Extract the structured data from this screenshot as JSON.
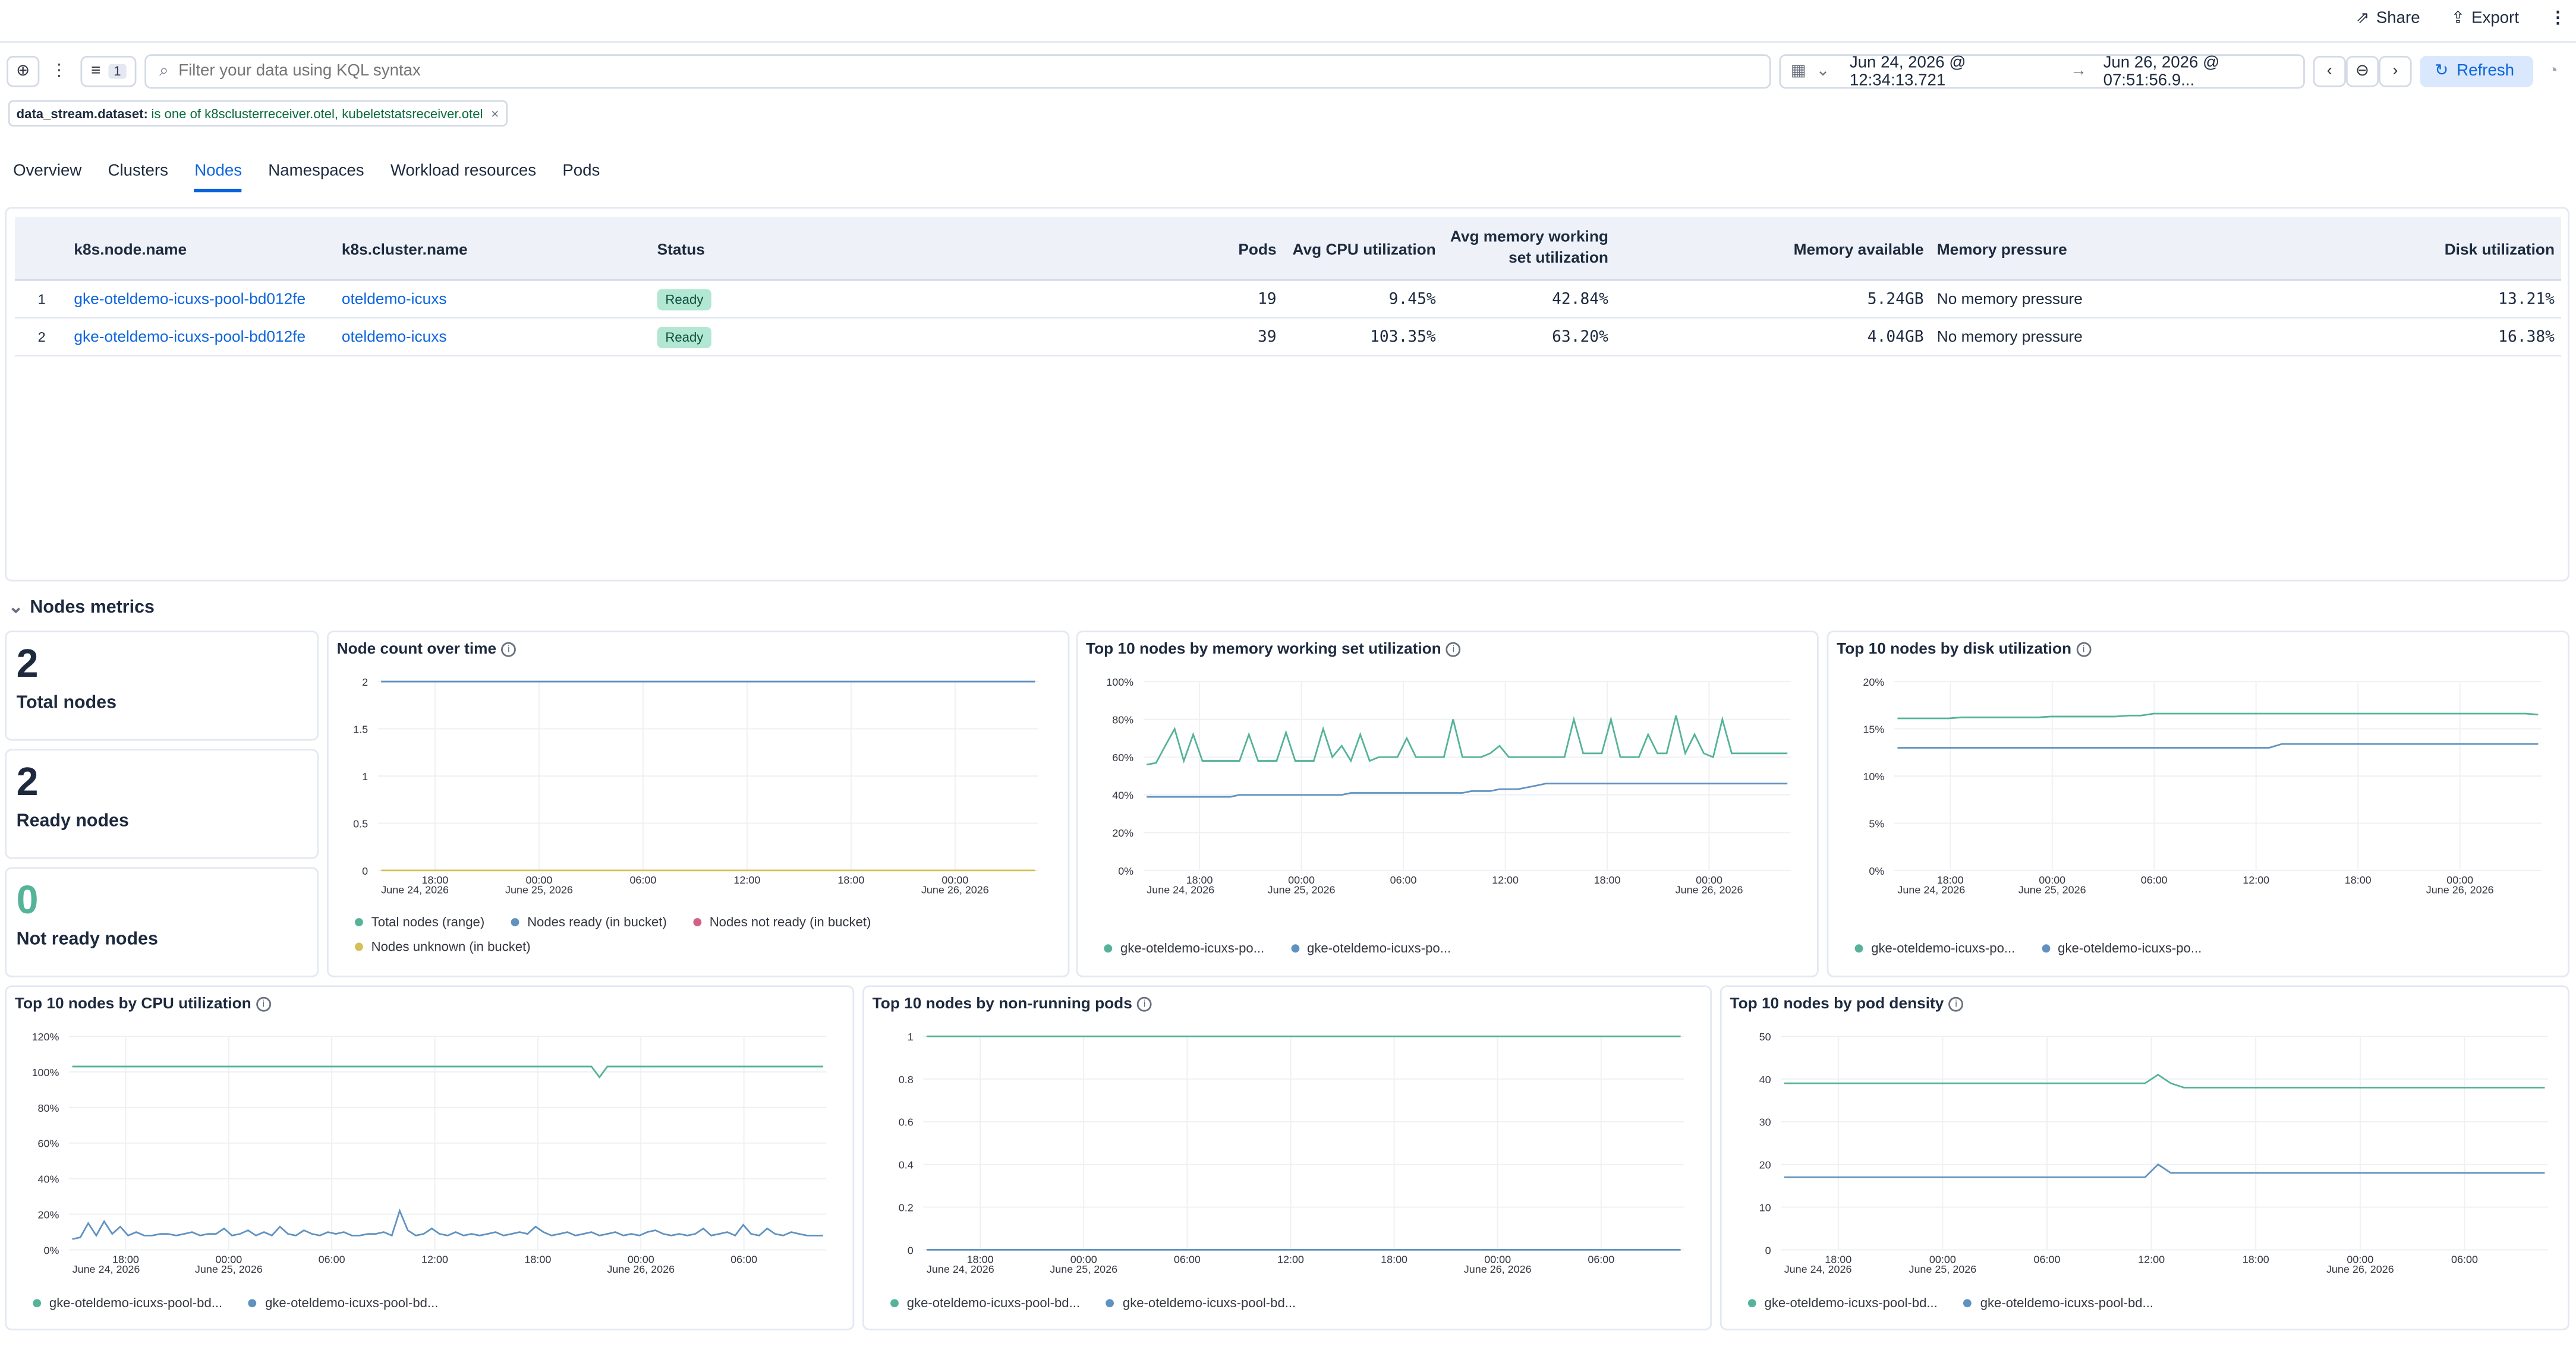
{
  "header": {
    "share": "Share",
    "export": "Export"
  },
  "filterbar": {
    "filter_count": "1",
    "search_placeholder": "Filter your data using KQL syntax",
    "date_start": "Jun 24, 2026 @ 12:34:13.721",
    "date_arrow": "→",
    "date_end": "Jun 26, 2026 @ 07:51:56.9...",
    "refresh": "Refresh"
  },
  "pill": {
    "field": "data_stream.dataset:",
    "value": "is one of k8sclusterreceiver.otel, kubeletstatsreceiver.otel",
    "remove": "×"
  },
  "tabs": [
    "Overview",
    "Clusters",
    "Nodes",
    "Namespaces",
    "Workload resources",
    "Pods"
  ],
  "table": {
    "headers": {
      "node": "k8s.node.name",
      "cluster": "k8s.cluster.name",
      "status": "Status",
      "pods": "Pods",
      "cpu": "Avg CPU utilization",
      "mem1": "Avg memory working",
      "mem2": "set utilization",
      "avail": "Memory available",
      "pressure": "Memory pressure",
      "disk": "Disk utilization"
    },
    "rows": [
      {
        "n": "1",
        "node": "gke-oteldemo-icuxs-pool-bd012fe",
        "cluster": "oteldemo-icuxs",
        "status": "Ready",
        "pods": "19",
        "cpu": "9.45%",
        "mem": "42.84%",
        "avail": "5.24GB",
        "pressure": "No memory pressure",
        "disk": "13.21%"
      },
      {
        "n": "2",
        "node": "gke-oteldemo-icuxs-pool-bd012fe",
        "cluster": "oteldemo-icuxs",
        "status": "Ready",
        "pods": "39",
        "cpu": "103.35%",
        "mem": "63.20%",
        "avail": "4.04GB",
        "pressure": "No memory pressure",
        "disk": "16.38%"
      }
    ]
  },
  "section": {
    "title": "Nodes metrics"
  },
  "stats": [
    {
      "value": "2",
      "label": "Total nodes"
    },
    {
      "value": "2",
      "label": "Ready nodes"
    },
    {
      "value": "0",
      "label": "Not ready nodes"
    }
  ],
  "colors": {
    "teal": "#54b399",
    "blue": "#6092c0",
    "pink": "#d36086",
    "orange": "#d6bf57",
    "green_value": "#54b399"
  },
  "panels": {
    "node_count": {
      "title": "Node count over time",
      "legend": [
        "Total nodes (range)",
        "Nodes ready (in bucket)",
        "Nodes not ready (in bucket)",
        "Nodes unknown (in bucket)"
      ]
    },
    "memory": {
      "title": "Top 10 nodes by memory working set utilization",
      "legend": [
        "gke-oteldemo-icuxs-po...",
        "gke-oteldemo-icuxs-po..."
      ]
    },
    "disk": {
      "title": "Top 10 nodes by disk utilization",
      "legend": [
        "gke-oteldemo-icuxs-po...",
        "gke-oteldemo-icuxs-po..."
      ]
    },
    "cpu": {
      "title": "Top 10 nodes by CPU utilization",
      "legend": [
        "gke-oteldemo-icuxs-pool-bd...",
        "gke-oteldemo-icuxs-pool-bd..."
      ]
    },
    "nonrun": {
      "title": "Top 10 nodes by non-running pods",
      "legend": [
        "gke-oteldemo-icuxs-pool-bd...",
        "gke-oteldemo-icuxs-pool-bd..."
      ]
    },
    "density": {
      "title": "Top 10 nodes by pod density",
      "legend": [
        "gke-oteldemo-icuxs-pool-bd...",
        "gke-oteldemo-icuxs-pool-bd..."
      ]
    }
  },
  "chart_data": [
    {
      "id": "node_count",
      "type": "line",
      "yticks": [
        "2",
        "1.5",
        "1",
        "0.5",
        "0"
      ],
      "ylim": [
        0,
        2
      ],
      "xticks": [
        {
          "t": "18:00",
          "s": ""
        },
        {
          "t": "00:00",
          "s": "June 25, 2026"
        },
        {
          "t": "06:00",
          "s": ""
        },
        {
          "t": "12:00",
          "s": ""
        },
        {
          "t": "18:00",
          "s": ""
        },
        {
          "t": "00:00",
          "s": "June 26, 2026"
        }
      ],
      "xstart": "June 24, 2026",
      "series": [
        {
          "name": "Total nodes (range)",
          "color": "#6092c0",
          "values": [
            2,
            2,
            2,
            2,
            2,
            2,
            2,
            2
          ]
        },
        {
          "name": "Nodes unknown (in bucket)",
          "color": "#d6bf57",
          "values": [
            0,
            0,
            0,
            0,
            0,
            0,
            0,
            0
          ]
        }
      ]
    },
    {
      "id": "memory",
      "type": "line",
      "yticks": [
        "100%",
        "80%",
        "60%",
        "40%",
        "20%",
        "0%"
      ],
      "ylim": [
        0,
        100
      ],
      "xticks": [
        {
          "t": "18:00",
          "s": ""
        },
        {
          "t": "00:00",
          "s": "June 25, 2026"
        },
        {
          "t": "06:00",
          "s": ""
        },
        {
          "t": "12:00",
          "s": ""
        },
        {
          "t": "18:00",
          "s": ""
        },
        {
          "t": "00:00",
          "s": "June 26, 2026"
        }
      ],
      "xstart": "June 24, 2026",
      "series": [
        {
          "color": "#54b399",
          "values": [
            56,
            57,
            66,
            75,
            58,
            72,
            58,
            58,
            58,
            58,
            58,
            72,
            58,
            58,
            58,
            73,
            58,
            58,
            58,
            75,
            60,
            66,
            58,
            72,
            58,
            60,
            60,
            60,
            70,
            60,
            60,
            60,
            60,
            80,
            60,
            60,
            60,
            62,
            66,
            60,
            60,
            60,
            60,
            60,
            60,
            60,
            80,
            62,
            62,
            62,
            80,
            60,
            60,
            60,
            72,
            62,
            62,
            82,
            62,
            72,
            62,
            60,
            80,
            62,
            62,
            62,
            62,
            62,
            62,
            62
          ]
        },
        {
          "color": "#6092c0",
          "values": [
            39,
            39,
            39,
            39,
            39,
            39,
            39,
            39,
            39,
            39,
            40,
            40,
            40,
            40,
            40,
            40,
            40,
            40,
            40,
            40,
            40,
            40,
            41,
            41,
            41,
            41,
            41,
            41,
            41,
            41,
            41,
            41,
            41,
            41,
            41,
            42,
            42,
            42,
            43,
            43,
            43,
            44,
            45,
            46,
            46,
            46,
            46,
            46,
            46,
            46,
            46,
            46,
            46,
            46,
            46,
            46,
            46,
            46,
            46,
            46,
            46,
            46,
            46,
            46,
            46,
            46,
            46,
            46,
            46,
            46
          ]
        }
      ]
    },
    {
      "id": "disk",
      "type": "line",
      "yticks": [
        "20%",
        "15%",
        "10%",
        "5%",
        "0%"
      ],
      "ylim": [
        0,
        20
      ],
      "xticks": [
        {
          "t": "18:00",
          "s": ""
        },
        {
          "t": "00:00",
          "s": "June 25, 2026"
        },
        {
          "t": "06:00",
          "s": ""
        },
        {
          "t": "12:00",
          "s": ""
        },
        {
          "t": "18:00",
          "s": ""
        },
        {
          "t": "00:00",
          "s": "June 26, 2026"
        }
      ],
      "xstart": "June 24, 2026",
      "series": [
        {
          "color": "#54b399",
          "values": [
            16.1,
            16.1,
            16.1,
            16.1,
            16.1,
            16.2,
            16.2,
            16.2,
            16.2,
            16.2,
            16.2,
            16.2,
            16.3,
            16.3,
            16.3,
            16.3,
            16.3,
            16.3,
            16.4,
            16.4,
            16.6,
            16.6,
            16.6,
            16.6,
            16.6,
            16.6,
            16.6,
            16.6,
            16.6,
            16.6,
            16.6,
            16.6,
            16.6,
            16.6,
            16.6,
            16.6,
            16.6,
            16.6,
            16.6,
            16.6,
            16.6,
            16.6,
            16.6,
            16.6,
            16.6,
            16.6,
            16.6,
            16.6,
            16.6,
            16.6,
            16.5
          ]
        },
        {
          "color": "#6092c0",
          "values": [
            13,
            13,
            13,
            13,
            13,
            13,
            13,
            13,
            13,
            13,
            13,
            13,
            13,
            13,
            13,
            13,
            13,
            13,
            13,
            13,
            13,
            13,
            13,
            13,
            13,
            13,
            13,
            13,
            13,
            13,
            13.4,
            13.4,
            13.4,
            13.4,
            13.4,
            13.4,
            13.4,
            13.4,
            13.4,
            13.4,
            13.4,
            13.4,
            13.4,
            13.4,
            13.4,
            13.4,
            13.4,
            13.4,
            13.4,
            13.4,
            13.4
          ]
        }
      ]
    },
    {
      "id": "cpu",
      "type": "line",
      "yticks": [
        "120%",
        "100%",
        "80%",
        "60%",
        "40%",
        "20%",
        "0%"
      ],
      "ylim": [
        0,
        120
      ],
      "xticks": [
        {
          "t": "18:00",
          "s": ""
        },
        {
          "t": "00:00",
          "s": "June 25, 2026"
        },
        {
          "t": "06:00",
          "s": ""
        },
        {
          "t": "12:00",
          "s": ""
        },
        {
          "t": "18:00",
          "s": ""
        },
        {
          "t": "00:00",
          "s": "June 26, 2026"
        },
        {
          "t": "06:00",
          "s": ""
        }
      ],
      "xstart": "June 24, 2026",
      "series": [
        {
          "color": "#54b399",
          "values": [
            103,
            103,
            103,
            103,
            103,
            103,
            103,
            103,
            103,
            103,
            103,
            103,
            103,
            103,
            103,
            103,
            103,
            103,
            103,
            103,
            103,
            103,
            103,
            103,
            103,
            103,
            103,
            103,
            103,
            103,
            103,
            103,
            103,
            103,
            103,
            103,
            103,
            103,
            103,
            103,
            103,
            103,
            103,
            103,
            103,
            103,
            103,
            103,
            103,
            103,
            103,
            103,
            103,
            103,
            103,
            103,
            103,
            103,
            103,
            103,
            103,
            103,
            103,
            103,
            103,
            103,
            97,
            103,
            103,
            103,
            103,
            103,
            103,
            103,
            103,
            103,
            103,
            103,
            103,
            103,
            103,
            103,
            103,
            103,
            103,
            103,
            103,
            103,
            103,
            103,
            103,
            103,
            103,
            103,
            103
          ]
        },
        {
          "color": "#6092c0",
          "values": [
            6,
            7,
            15,
            8,
            16,
            9,
            13,
            8,
            10,
            8,
            8,
            9,
            9,
            8,
            9,
            10,
            8,
            9,
            9,
            12,
            8,
            9,
            11,
            8,
            10,
            8,
            13,
            9,
            8,
            11,
            9,
            8,
            10,
            9,
            10,
            8,
            8,
            9,
            9,
            10,
            8,
            22,
            11,
            8,
            9,
            12,
            9,
            8,
            10,
            8,
            9,
            8,
            9,
            10,
            8,
            9,
            10,
            9,
            13,
            10,
            8,
            9,
            10,
            8,
            9,
            10,
            8,
            9,
            10,
            8,
            9,
            8,
            10,
            11,
            9,
            8,
            9,
            8,
            9,
            12,
            8,
            9,
            10,
            8,
            14,
            9,
            8,
            12,
            9,
            8,
            10,
            9,
            8,
            8,
            8
          ]
        }
      ]
    },
    {
      "id": "nonrun",
      "type": "line",
      "yticks": [
        "1",
        "0.8",
        "0.6",
        "0.4",
        "0.2",
        "0"
      ],
      "ylim": [
        0,
        1
      ],
      "xticks": [
        {
          "t": "18:00",
          "s": ""
        },
        {
          "t": "00:00",
          "s": "June 25, 2026"
        },
        {
          "t": "06:00",
          "s": ""
        },
        {
          "t": "12:00",
          "s": ""
        },
        {
          "t": "18:00",
          "s": ""
        },
        {
          "t": "00:00",
          "s": "June 26, 2026"
        },
        {
          "t": "06:00",
          "s": ""
        }
      ],
      "xstart": "June 24, 2026",
      "series": [
        {
          "color": "#54b399",
          "values": [
            1,
            1,
            1,
            1,
            1,
            1,
            1,
            1
          ]
        },
        {
          "color": "#6092c0",
          "values": [
            0,
            0,
            0,
            0,
            0,
            0,
            0,
            0
          ]
        }
      ]
    },
    {
      "id": "density",
      "type": "line",
      "yticks": [
        "50",
        "40",
        "30",
        "20",
        "10",
        "0"
      ],
      "ylim": [
        0,
        50
      ],
      "xticks": [
        {
          "t": "18:00",
          "s": ""
        },
        {
          "t": "00:00",
          "s": "June 25, 2026"
        },
        {
          "t": "06:00",
          "s": ""
        },
        {
          "t": "12:00",
          "s": ""
        },
        {
          "t": "18:00",
          "s": ""
        },
        {
          "t": "00:00",
          "s": "June 26, 2026"
        },
        {
          "t": "06:00",
          "s": ""
        }
      ],
      "xstart": "June 24, 2026",
      "series": [
        {
          "color": "#54b399",
          "values": [
            39,
            39,
            39,
            39,
            39,
            39,
            39,
            39,
            39,
            39,
            39,
            39,
            39,
            39,
            39,
            39,
            39,
            39,
            39,
            39,
            39,
            39,
            39,
            39,
            39,
            39,
            39,
            39,
            39,
            41,
            39,
            38,
            38,
            38,
            38,
            38,
            38,
            38,
            38,
            38,
            38,
            38,
            38,
            38,
            38,
            38,
            38,
            38,
            38,
            38,
            38,
            38,
            38,
            38,
            38,
            38,
            38,
            38,
            38,
            38
          ]
        },
        {
          "color": "#6092c0",
          "values": [
            17,
            17,
            17,
            17,
            17,
            17,
            17,
            17,
            17,
            17,
            17,
            17,
            17,
            17,
            17,
            17,
            17,
            17,
            17,
            17,
            17,
            17,
            17,
            17,
            17,
            17,
            17,
            17,
            17,
            20,
            18,
            18,
            18,
            18,
            18,
            18,
            18,
            18,
            18,
            18,
            18,
            18,
            18,
            18,
            18,
            18,
            18,
            18,
            18,
            18,
            18,
            18,
            18,
            18,
            18,
            18,
            18,
            18,
            18,
            18
          ]
        }
      ]
    }
  ]
}
